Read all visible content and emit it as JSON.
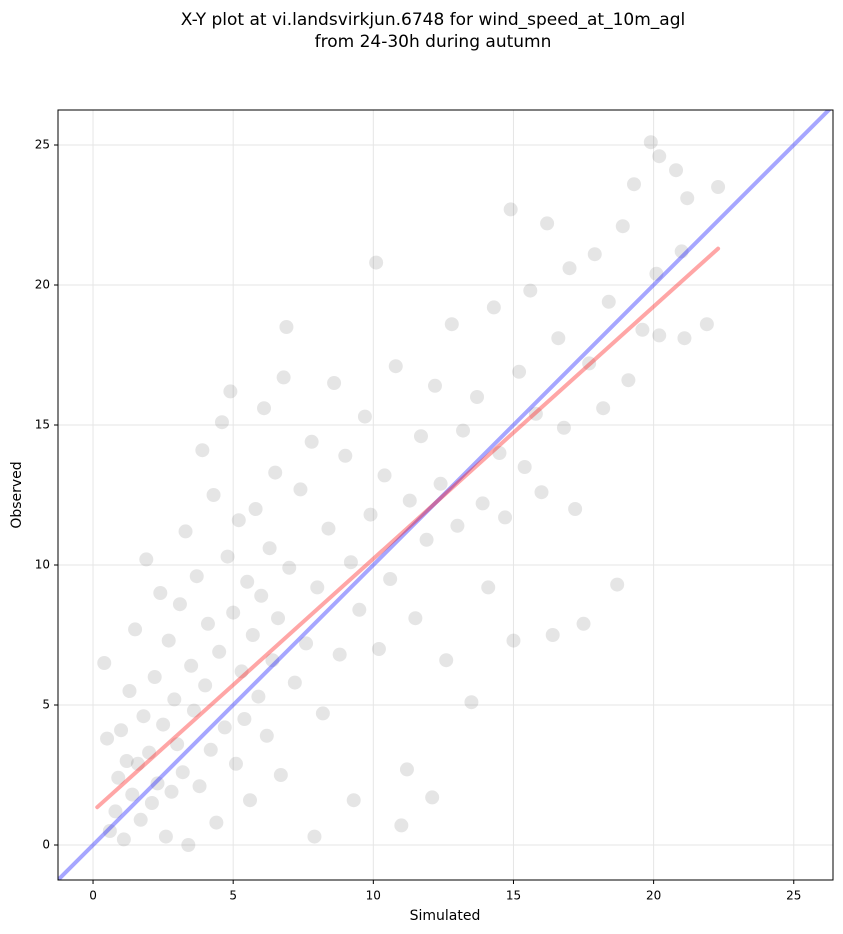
{
  "chart_data": {
    "type": "scatter",
    "title": "X-Y plot at vi.landsvirkjun.6748 for wind_speed_at_10m_agl",
    "subtitle": "from 24-30h during autumn",
    "x_label": "Simulated",
    "y_label": "Observed",
    "xlim": [
      -1.25,
      26.4
    ],
    "ylim": [
      -1.25,
      26.25
    ],
    "xticks": [
      0,
      5,
      10,
      15,
      20,
      25
    ],
    "yticks": [
      0,
      5,
      10,
      15,
      20,
      25
    ],
    "grid": true,
    "series": [
      {
        "type": "scatter",
        "color": "#000000",
        "x": [
          0.4,
          0.5,
          0.6,
          0.8,
          0.9,
          1.0,
          1.1,
          1.2,
          1.3,
          1.4,
          1.5,
          1.6,
          1.7,
          1.8,
          1.9,
          2.0,
          2.1,
          2.2,
          2.3,
          2.4,
          2.5,
          2.6,
          2.7,
          2.8,
          2.9,
          3.0,
          3.1,
          3.2,
          3.3,
          3.4,
          3.5,
          3.6,
          3.7,
          3.8,
          3.9,
          4.0,
          4.1,
          4.2,
          4.3,
          4.4,
          4.5,
          4.6,
          4.7,
          4.8,
          4.9,
          5.0,
          5.1,
          5.2,
          5.3,
          5.4,
          5.5,
          5.6,
          5.7,
          5.8,
          5.9,
          6.0,
          6.1,
          6.2,
          6.3,
          6.4,
          6.5,
          6.6,
          6.7,
          6.8,
          6.9,
          7.0,
          7.2,
          7.4,
          7.6,
          7.8,
          7.9,
          8.0,
          8.2,
          8.4,
          8.6,
          8.8,
          9.0,
          9.2,
          9.3,
          9.5,
          9.7,
          9.9,
          10.1,
          10.2,
          10.4,
          10.6,
          10.8,
          11.0,
          11.2,
          11.3,
          11.5,
          11.7,
          11.9,
          12.1,
          12.2,
          12.4,
          12.6,
          12.8,
          13.0,
          13.2,
          13.5,
          13.7,
          13.9,
          14.1,
          14.3,
          14.5,
          14.7,
          14.9,
          15.0,
          15.2,
          15.4,
          15.6,
          15.8,
          16.0,
          16.2,
          16.4,
          16.6,
          16.8,
          17.0,
          17.2,
          17.5,
          17.7,
          17.9,
          18.2,
          18.4,
          18.7,
          18.9,
          19.1,
          19.3,
          19.6,
          19.9,
          20.1,
          20.2,
          20.2,
          20.8,
          21.0,
          21.2,
          21.1,
          21.9,
          22.3
        ],
        "values": [
          6.5,
          3.8,
          0.5,
          1.2,
          2.4,
          4.1,
          0.2,
          3.0,
          5.5,
          1.8,
          7.7,
          2.9,
          0.9,
          4.6,
          10.2,
          3.3,
          1.5,
          6.0,
          2.2,
          9.0,
          4.3,
          0.3,
          7.3,
          1.9,
          5.2,
          3.6,
          8.6,
          2.6,
          11.2,
          0.0,
          6.4,
          4.8,
          9.6,
          2.1,
          14.1,
          5.7,
          7.9,
          3.4,
          12.5,
          0.8,
          6.9,
          15.1,
          4.2,
          10.3,
          16.2,
          8.3,
          2.9,
          11.6,
          6.2,
          4.5,
          9.4,
          1.6,
          7.5,
          12.0,
          5.3,
          8.9,
          15.6,
          3.9,
          10.6,
          6.6,
          13.3,
          8.1,
          2.5,
          16.7,
          18.5,
          9.9,
          5.8,
          12.7,
          7.2,
          14.4,
          0.3,
          9.2,
          4.7,
          11.3,
          16.5,
          6.8,
          13.9,
          10.1,
          1.6,
          8.4,
          15.3,
          11.8,
          20.8,
          7.0,
          13.2,
          9.5,
          17.1,
          0.7,
          2.7,
          12.3,
          8.1,
          14.6,
          10.9,
          1.7,
          16.4,
          12.9,
          6.6,
          18.6,
          11.4,
          14.8,
          5.1,
          16.0,
          12.2,
          9.2,
          19.2,
          14.0,
          11.7,
          22.7,
          7.3,
          16.9,
          13.5,
          19.8,
          15.4,
          12.6,
          22.2,
          7.5,
          18.1,
          14.9,
          20.6,
          12.0,
          7.9,
          17.2,
          21.1,
          15.6,
          19.4,
          9.3,
          22.1,
          16.6,
          23.6,
          18.4,
          25.1,
          20.4,
          24.6,
          18.2,
          24.1,
          21.2,
          23.1,
          18.1,
          18.6,
          23.5
        ]
      },
      {
        "type": "line",
        "color": "#0000ff",
        "x": [
          -1.25,
          26.4
        ],
        "values": [
          -1.25,
          26.4
        ]
      },
      {
        "type": "line",
        "color": "#ff0000",
        "x": [
          0.15,
          22.3
        ],
        "values": [
          1.35,
          21.3
        ]
      }
    ]
  }
}
